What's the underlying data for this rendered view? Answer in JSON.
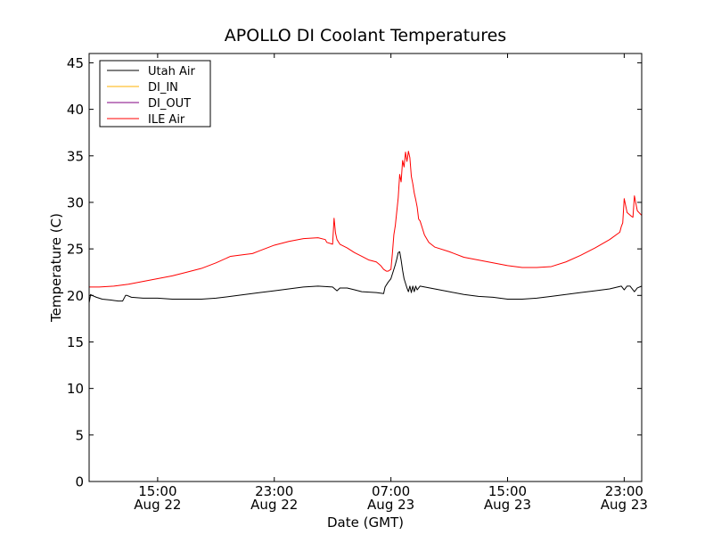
{
  "chart_data": {
    "type": "line",
    "title": "APOLLO DI Coolant Temperatures",
    "xlabel": "Date (GMT)",
    "ylabel": "Temperature (C)",
    "xlim": [
      10.3,
      48.2
    ],
    "ylim": [
      0,
      46
    ],
    "y_ticks": [
      0,
      5,
      10,
      15,
      20,
      25,
      30,
      35,
      40,
      45
    ],
    "x_ticks": [
      {
        "x": 15,
        "time": "15:00",
        "date": "Aug 22"
      },
      {
        "x": 23,
        "time": "23:00",
        "date": "Aug 22"
      },
      {
        "x": 31,
        "time": "07:00",
        "date": "Aug 23"
      },
      {
        "x": 39,
        "time": "15:00",
        "date": "Aug 23"
      },
      {
        "x": 47,
        "time": "23:00",
        "date": "Aug 23"
      }
    ],
    "x_unit": "hours since 00:00 Aug 22 (GMT)",
    "legend_position": "upper-left",
    "series": [
      {
        "name": "Utah Air",
        "color": "#000000",
        "x": [
          10.3,
          10.4,
          10.5,
          10.8,
          11.2,
          11.8,
          12.3,
          12.6,
          12.8,
          12.9,
          13.2,
          14.0,
          15.0,
          16.0,
          17.0,
          18.0,
          19.0,
          20.0,
          21.0,
          22.0,
          23.0,
          24.0,
          25.0,
          26.0,
          27.0,
          27.3,
          27.5,
          28.0,
          28.5,
          29.0,
          30.0,
          30.5,
          30.6,
          30.8,
          31.0,
          31.2,
          31.3,
          31.4,
          31.5,
          31.6,
          31.7,
          31.8,
          31.9,
          32.0,
          32.1,
          32.2,
          32.3,
          32.4,
          32.5,
          32.6,
          32.7,
          32.8,
          33.0,
          34.0,
          35.0,
          36.0,
          37.0,
          38.0,
          39.0,
          40.0,
          41.0,
          42.0,
          43.0,
          44.0,
          45.0,
          46.0,
          46.8,
          47.0,
          47.2,
          47.4,
          47.7,
          47.9,
          48.2
        ],
        "values": [
          19.2,
          20.1,
          20.0,
          19.8,
          19.6,
          19.5,
          19.4,
          19.4,
          20.0,
          20.0,
          19.8,
          19.7,
          19.7,
          19.6,
          19.6,
          19.6,
          19.7,
          19.9,
          20.1,
          20.3,
          20.5,
          20.7,
          20.9,
          21.0,
          20.9,
          20.5,
          20.8,
          20.8,
          20.6,
          20.4,
          20.3,
          20.2,
          20.9,
          21.4,
          21.8,
          22.8,
          23.3,
          23.9,
          24.6,
          24.7,
          23.8,
          22.7,
          21.8,
          21.3,
          20.8,
          20.4,
          21.0,
          20.3,
          21.0,
          20.4,
          21.0,
          20.6,
          21.0,
          20.7,
          20.4,
          20.1,
          19.9,
          19.8,
          19.6,
          19.6,
          19.7,
          19.9,
          20.1,
          20.3,
          20.5,
          20.7,
          21.0,
          20.6,
          21.0,
          21.0,
          20.4,
          20.8,
          21.0
        ]
      },
      {
        "name": "DI_IN",
        "color": "#ffb000",
        "x": [],
        "values": []
      },
      {
        "name": "DI_OUT",
        "color": "#800080",
        "x": [],
        "values": []
      },
      {
        "name": "ILE Air",
        "color": "#ff0000",
        "x": [
          10.3,
          11.0,
          12.0,
          13.0,
          14.0,
          15.0,
          16.0,
          17.0,
          18.0,
          19.0,
          20.0,
          21.0,
          21.5,
          22.0,
          23.0,
          24.0,
          25.0,
          26.0,
          26.5,
          26.6,
          27.0,
          27.1,
          27.2,
          27.3,
          27.5,
          28.0,
          28.5,
          29.0,
          29.5,
          30.0,
          30.3,
          30.5,
          30.7,
          30.8,
          31.0,
          31.1,
          31.2,
          31.3,
          31.4,
          31.5,
          31.6,
          31.7,
          31.8,
          31.9,
          32.0,
          32.1,
          32.2,
          32.3,
          32.4,
          32.5,
          32.6,
          32.7,
          32.8,
          32.9,
          33.0,
          33.3,
          33.6,
          34.0,
          35.0,
          36.0,
          37.0,
          38.0,
          39.0,
          40.0,
          41.0,
          42.0,
          43.0,
          44.0,
          45.0,
          46.0,
          46.7,
          46.8,
          46.9,
          47.0,
          47.2,
          47.5,
          47.6,
          47.7,
          47.9,
          48.2
        ],
        "values": [
          20.9,
          20.9,
          21.0,
          21.2,
          21.5,
          21.8,
          22.1,
          22.5,
          22.9,
          23.5,
          24.2,
          24.4,
          24.5,
          24.8,
          25.4,
          25.8,
          26.1,
          26.2,
          26.0,
          25.7,
          25.5,
          28.3,
          26.7,
          26.0,
          25.5,
          25.1,
          24.6,
          24.2,
          23.8,
          23.6,
          23.2,
          22.8,
          22.6,
          22.6,
          22.8,
          24.5,
          26.5,
          27.5,
          29.0,
          30.5,
          33.0,
          32.2,
          34.5,
          33.8,
          35.4,
          34.4,
          35.5,
          34.8,
          32.8,
          32.0,
          31.0,
          30.3,
          29.5,
          28.2,
          28.0,
          26.5,
          25.7,
          25.2,
          24.7,
          24.1,
          23.8,
          23.5,
          23.2,
          23.0,
          23.0,
          23.1,
          23.6,
          24.3,
          25.1,
          26.0,
          26.8,
          27.4,
          27.8,
          30.4,
          28.9,
          28.5,
          28.4,
          30.7,
          29.1,
          28.6
        ]
      }
    ]
  }
}
